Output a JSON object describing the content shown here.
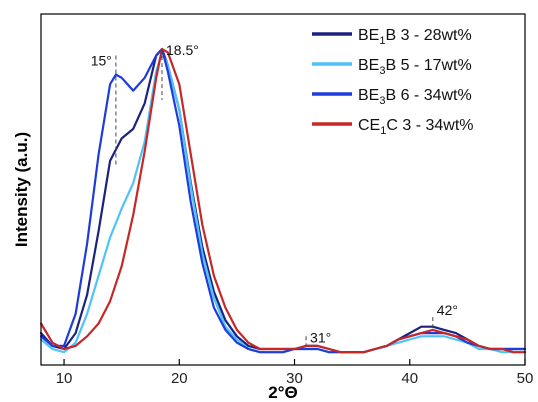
{
  "chart_data": {
    "type": "line",
    "xlabel": "2°Θ",
    "ylabel": "Intensity (a.u.)",
    "xlim": [
      8,
      50
    ],
    "ylim": [
      0,
      1.1
    ],
    "xticks": [
      10,
      20,
      30,
      40,
      50
    ],
    "yticks": [],
    "grid": false,
    "legend_position": "top-right",
    "series": [
      {
        "name": "BE1B 3 - 28wt%",
        "label_main": "BE",
        "label_sub": "1",
        "label_rest": "B 3 - 28wt%",
        "color": "#1a237e",
        "points": [
          [
            8,
            0.1
          ],
          [
            9,
            0.06
          ],
          [
            10,
            0.05
          ],
          [
            11,
            0.1
          ],
          [
            12,
            0.22
          ],
          [
            13,
            0.42
          ],
          [
            14,
            0.64
          ],
          [
            15,
            0.71
          ],
          [
            16,
            0.74
          ],
          [
            17,
            0.82
          ],
          [
            18,
            0.97
          ],
          [
            18.5,
            0.99
          ],
          [
            19,
            0.94
          ],
          [
            20,
            0.8
          ],
          [
            21,
            0.57
          ],
          [
            22,
            0.37
          ],
          [
            23,
            0.23
          ],
          [
            24,
            0.14
          ],
          [
            25,
            0.09
          ],
          [
            26,
            0.06
          ],
          [
            27,
            0.05
          ],
          [
            28,
            0.05
          ],
          [
            29,
            0.05
          ],
          [
            30,
            0.05
          ],
          [
            31,
            0.06
          ],
          [
            32,
            0.06
          ],
          [
            33,
            0.05
          ],
          [
            34,
            0.04
          ],
          [
            35,
            0.04
          ],
          [
            36,
            0.04
          ],
          [
            37,
            0.05
          ],
          [
            38,
            0.06
          ],
          [
            39,
            0.08
          ],
          [
            40,
            0.1
          ],
          [
            41,
            0.12
          ],
          [
            42,
            0.12
          ],
          [
            43,
            0.11
          ],
          [
            44,
            0.1
          ],
          [
            45,
            0.08
          ],
          [
            46,
            0.06
          ],
          [
            47,
            0.05
          ],
          [
            48,
            0.05
          ],
          [
            49,
            0.05
          ],
          [
            50,
            0.05
          ]
        ]
      },
      {
        "name": "BE3B 5 - 17wt%",
        "label_main": "BE",
        "label_sub": "3",
        "label_rest": "B 5 - 17wt%",
        "color": "#4fc3f7",
        "points": [
          [
            8,
            0.08
          ],
          [
            9,
            0.05
          ],
          [
            10,
            0.04
          ],
          [
            11,
            0.07
          ],
          [
            12,
            0.16
          ],
          [
            13,
            0.28
          ],
          [
            14,
            0.4
          ],
          [
            15,
            0.49
          ],
          [
            16,
            0.57
          ],
          [
            17,
            0.7
          ],
          [
            18,
            0.92
          ],
          [
            18.5,
            0.98
          ],
          [
            19,
            0.94
          ],
          [
            20,
            0.8
          ],
          [
            21,
            0.56
          ],
          [
            22,
            0.35
          ],
          [
            23,
            0.21
          ],
          [
            24,
            0.12
          ],
          [
            25,
            0.08
          ],
          [
            26,
            0.05
          ],
          [
            27,
            0.04
          ],
          [
            28,
            0.04
          ],
          [
            29,
            0.04
          ],
          [
            30,
            0.05
          ],
          [
            31,
            0.05
          ],
          [
            32,
            0.05
          ],
          [
            33,
            0.04
          ],
          [
            34,
            0.04
          ],
          [
            35,
            0.04
          ],
          [
            36,
            0.04
          ],
          [
            37,
            0.05
          ],
          [
            38,
            0.06
          ],
          [
            39,
            0.07
          ],
          [
            40,
            0.08
          ],
          [
            41,
            0.09
          ],
          [
            42,
            0.09
          ],
          [
            43,
            0.09
          ],
          [
            44,
            0.08
          ],
          [
            45,
            0.07
          ],
          [
            46,
            0.05
          ],
          [
            47,
            0.05
          ],
          [
            48,
            0.04
          ],
          [
            49,
            0.04
          ],
          [
            50,
            0.04
          ]
        ]
      },
      {
        "name": "BE3B 6 - 34wt%",
        "label_main": "BE",
        "label_sub": "3",
        "label_rest": "B 6 - 34wt%",
        "color": "#1e3cdc",
        "points": [
          [
            8,
            0.09
          ],
          [
            9,
            0.06
          ],
          [
            10,
            0.06
          ],
          [
            11,
            0.16
          ],
          [
            12,
            0.38
          ],
          [
            13,
            0.66
          ],
          [
            14,
            0.88
          ],
          [
            14.5,
            0.91
          ],
          [
            15,
            0.9
          ],
          [
            16,
            0.86
          ],
          [
            17,
            0.9
          ],
          [
            18,
            0.97
          ],
          [
            18.5,
            0.99
          ],
          [
            19,
            0.92
          ],
          [
            20,
            0.75
          ],
          [
            21,
            0.51
          ],
          [
            22,
            0.32
          ],
          [
            23,
            0.18
          ],
          [
            24,
            0.11
          ],
          [
            25,
            0.07
          ],
          [
            26,
            0.05
          ],
          [
            27,
            0.04
          ],
          [
            28,
            0.04
          ],
          [
            29,
            0.04
          ],
          [
            30,
            0.05
          ],
          [
            31,
            0.05
          ],
          [
            32,
            0.05
          ],
          [
            33,
            0.04
          ],
          [
            34,
            0.04
          ],
          [
            35,
            0.04
          ],
          [
            36,
            0.04
          ],
          [
            37,
            0.05
          ],
          [
            38,
            0.06
          ],
          [
            39,
            0.08
          ],
          [
            40,
            0.09
          ],
          [
            41,
            0.1
          ],
          [
            42,
            0.1
          ],
          [
            43,
            0.1
          ],
          [
            44,
            0.09
          ],
          [
            45,
            0.07
          ],
          [
            46,
            0.06
          ],
          [
            47,
            0.05
          ],
          [
            48,
            0.05
          ],
          [
            49,
            0.05
          ],
          [
            50,
            0.05
          ]
        ]
      },
      {
        "name": "CE1C 3 - 34wt%",
        "label_main": "CE",
        "label_sub": "1",
        "label_rest": "C 3 - 34wt%",
        "color": "#c62828",
        "points": [
          [
            8,
            0.13
          ],
          [
            9,
            0.07
          ],
          [
            10,
            0.05
          ],
          [
            11,
            0.06
          ],
          [
            12,
            0.09
          ],
          [
            13,
            0.13
          ],
          [
            14,
            0.2
          ],
          [
            15,
            0.31
          ],
          [
            16,
            0.47
          ],
          [
            17,
            0.67
          ],
          [
            18,
            0.9
          ],
          [
            18.5,
            0.99
          ],
          [
            19,
            0.98
          ],
          [
            20,
            0.88
          ],
          [
            21,
            0.66
          ],
          [
            22,
            0.44
          ],
          [
            23,
            0.28
          ],
          [
            24,
            0.18
          ],
          [
            25,
            0.11
          ],
          [
            26,
            0.07
          ],
          [
            27,
            0.05
          ],
          [
            28,
            0.05
          ],
          [
            29,
            0.05
          ],
          [
            30,
            0.05
          ],
          [
            31,
            0.06
          ],
          [
            32,
            0.06
          ],
          [
            33,
            0.05
          ],
          [
            34,
            0.04
          ],
          [
            35,
            0.04
          ],
          [
            36,
            0.04
          ],
          [
            37,
            0.05
          ],
          [
            38,
            0.06
          ],
          [
            39,
            0.08
          ],
          [
            40,
            0.09
          ],
          [
            41,
            0.1
          ],
          [
            42,
            0.11
          ],
          [
            43,
            0.1
          ],
          [
            44,
            0.09
          ],
          [
            45,
            0.08
          ],
          [
            46,
            0.06
          ],
          [
            47,
            0.05
          ],
          [
            48,
            0.05
          ],
          [
            49,
            0.04
          ],
          [
            50,
            0.04
          ]
        ]
      }
    ],
    "annotations": [
      {
        "label": "15°",
        "x": 14.5,
        "y_top": 0.97,
        "y_bottom": 0.62
      },
      {
        "label": "18.5°",
        "x": 18.5,
        "y_top": 0.99,
        "y_bottom": 0.83
      },
      {
        "label": "31°",
        "x": 31,
        "y_top": 0.09,
        "y_bottom": 0.06
      },
      {
        "label": "42°",
        "x": 42,
        "y_top": 0.15,
        "y_bottom": 0.11
      }
    ]
  }
}
